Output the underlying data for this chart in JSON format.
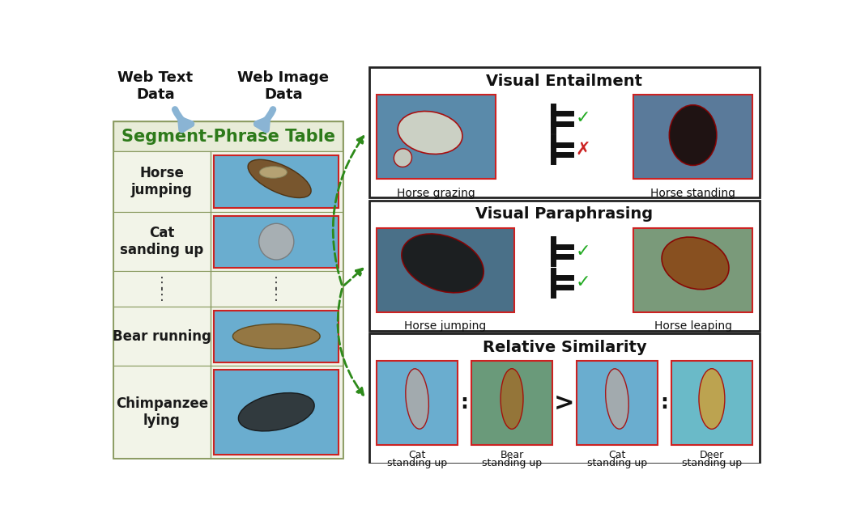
{
  "title": "Segment-Phrase Table",
  "bg_color": "#ffffff",
  "table_bg_light": "#f2f4e8",
  "table_bg_header": "#e8ecd8",
  "table_border": "#999999",
  "table_header_color": "#2d7a1a",
  "arrow_color": "#8ab4d4",
  "dashed_arrow_color": "#2d8a1a",
  "web_text": "Web Text\nData",
  "web_image": "Web Image\nData",
  "panel_titles": [
    "Visual Entailment",
    "Visual Paraphrasing",
    "Relative Similarity"
  ],
  "row_labels": [
    "Horse\njumping",
    "Cat\nsanding up",
    "Bear running",
    "Chimpanzee\nlying"
  ],
  "entailment_captions_left": "Horse grazing",
  "entailment_captions_right": "Horse standing",
  "paraphrasing_captions_left": "Horse jumping",
  "paraphrasing_captions_right": "Horse leaping",
  "similarity_captions": [
    "Cat\nstanding up",
    "Bear\nstanding up",
    "Cat\nstanding up",
    "Deer\nstanding up"
  ]
}
